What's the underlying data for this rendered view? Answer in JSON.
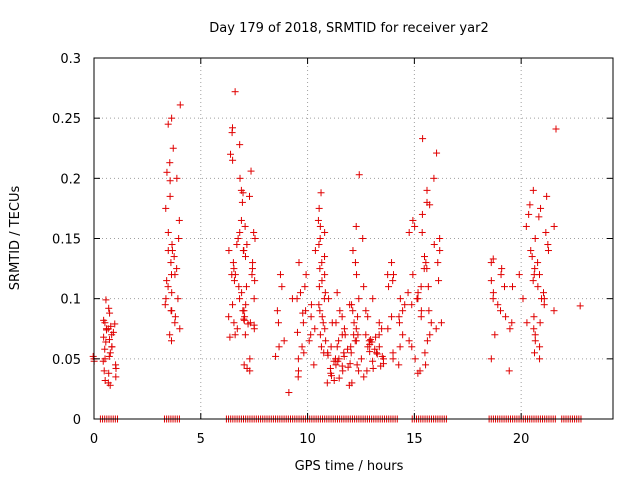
{
  "chart_data": {
    "type": "scatter",
    "title": "Day 179 of 2018, SRMTID for receiver yar2",
    "xlabel": "GPS time / hours",
    "ylabel": "SRMTID / TECUs",
    "xlim": [
      0,
      24.3
    ],
    "ylim": [
      0,
      0.3
    ],
    "xticks": [
      0,
      5,
      10,
      15,
      20
    ],
    "xtick_labels": [
      "0",
      "5",
      "10",
      "15",
      "20"
    ],
    "yticks": [
      0,
      0.05,
      0.1,
      0.15,
      0.2,
      0.25,
      0.3
    ],
    "ytick_labels": [
      "0",
      "0.05",
      "0.1",
      "0.15",
      "0.2",
      "0.25",
      "0.3"
    ],
    "grid": true,
    "marker": "+",
    "color": "#e00000",
    "clusters": [
      {
        "range": [
          -0.05,
          0.05
        ],
        "values": [
          0.05,
          0.048,
          0.052
        ]
      },
      {
        "range": [
          0.4,
          1.05
        ],
        "values": [
          0.099,
          0.092,
          0.088,
          0.082,
          0.079,
          0.077,
          0.075,
          0.074,
          0.072,
          0.07,
          0.068,
          0.066,
          0.064,
          0.06,
          0.058,
          0.055,
          0.052,
          0.05,
          0.048,
          0.045,
          0.042,
          0.04,
          0.038,
          0.035,
          0.032,
          0.03,
          0.028,
          0.06,
          0.075,
          0.08
        ]
      },
      {
        "range": [
          3.3,
          4.05
        ],
        "values": [
          0.261,
          0.25,
          0.245,
          0.225,
          0.213,
          0.205,
          0.2,
          0.198,
          0.185,
          0.175,
          0.165,
          0.155,
          0.15,
          0.145,
          0.14,
          0.135,
          0.13,
          0.125,
          0.12,
          0.115,
          0.11,
          0.105,
          0.1,
          0.095,
          0.09,
          0.085,
          0.08,
          0.075,
          0.07,
          0.065,
          0.14,
          0.12,
          0.1,
          0.09
        ]
      },
      {
        "range": [
          6.3,
          7.0
        ],
        "values": [
          0.272,
          0.242,
          0.238,
          0.228,
          0.22,
          0.215,
          0.2,
          0.19,
          0.188,
          0.18,
          0.165,
          0.155,
          0.15,
          0.145,
          0.14,
          0.13,
          0.125,
          0.12,
          0.115,
          0.11,
          0.1,
          0.095,
          0.09,
          0.085,
          0.08,
          0.075,
          0.07,
          0.068,
          0.14,
          0.12,
          0.105
        ]
      },
      {
        "range": [
          7.0,
          7.6
        ],
        "values": [
          0.206,
          0.185,
          0.16,
          0.155,
          0.15,
          0.145,
          0.14,
          0.135,
          0.13,
          0.125,
          0.12,
          0.115,
          0.11,
          0.1,
          0.095,
          0.09,
          0.085,
          0.083,
          0.08,
          0.078,
          0.075,
          0.07,
          0.05,
          0.045,
          0.042,
          0.04,
          0.082,
          0.079
        ]
      },
      {
        "range": [
          8.5,
          9.5
        ],
        "values": [
          0.12,
          0.11,
          0.1,
          0.08,
          0.06,
          0.052,
          0.022,
          0.09,
          0.065
        ]
      },
      {
        "range": [
          9.5,
          10.4
        ],
        "values": [
          0.13,
          0.12,
          0.11,
          0.1,
          0.095,
          0.09,
          0.085,
          0.08,
          0.075,
          0.07,
          0.065,
          0.06,
          0.055,
          0.05,
          0.045,
          0.04,
          0.035,
          0.105,
          0.088,
          0.072
        ]
      },
      {
        "range": [
          10.3,
          10.85
        ],
        "values": [
          0.188,
          0.175,
          0.165,
          0.16,
          0.155,
          0.15,
          0.145,
          0.14,
          0.135,
          0.13,
          0.125,
          0.12,
          0.115,
          0.11,
          0.105,
          0.1,
          0.095,
          0.09,
          0.085,
          0.08,
          0.075,
          0.07,
          0.065,
          0.06,
          0.055
        ]
      },
      {
        "range": [
          10.9,
          12.0
        ],
        "values": [
          0.105,
          0.1,
          0.095,
          0.09,
          0.085,
          0.08,
          0.075,
          0.07,
          0.065,
          0.06,
          0.058,
          0.055,
          0.053,
          0.05,
          0.048,
          0.046,
          0.044,
          0.042,
          0.04,
          0.038,
          0.036,
          0.034,
          0.032,
          0.03,
          0.028,
          0.05,
          0.055,
          0.045,
          0.06,
          0.07,
          0.08,
          0.052,
          0.048,
          0.043
        ]
      },
      {
        "range": [
          12.0,
          12.7
        ],
        "values": [
          0.203,
          0.16,
          0.15,
          0.14,
          0.13,
          0.12,
          0.11,
          0.1,
          0.095,
          0.09,
          0.085,
          0.08,
          0.075,
          0.07,
          0.065,
          0.06,
          0.055,
          0.05,
          0.045,
          0.04,
          0.035,
          0.03,
          0.065,
          0.07
        ]
      },
      {
        "range": [
          12.7,
          13.6
        ],
        "values": [
          0.1,
          0.09,
          0.085,
          0.08,
          0.075,
          0.07,
          0.068,
          0.066,
          0.064,
          0.062,
          0.06,
          0.058,
          0.056,
          0.054,
          0.052,
          0.05,
          0.048,
          0.046,
          0.044,
          0.042,
          0.04,
          0.065,
          0.06,
          0.07,
          0.055
        ]
      },
      {
        "range": [
          13.6,
          14.8
        ],
        "values": [
          0.155,
          0.13,
          0.12,
          0.115,
          0.11,
          0.105,
          0.1,
          0.095,
          0.09,
          0.085,
          0.08,
          0.075,
          0.07,
          0.065,
          0.06,
          0.055,
          0.05,
          0.045,
          0.085,
          0.12
        ]
      },
      {
        "range": [
          14.8,
          16.3
        ],
        "values": [
          0.233,
          0.221,
          0.2,
          0.19,
          0.18,
          0.178,
          0.17,
          0.165,
          0.16,
          0.155,
          0.15,
          0.145,
          0.14,
          0.135,
          0.13,
          0.125,
          0.12,
          0.115,
          0.11,
          0.105,
          0.1,
          0.095,
          0.09,
          0.085,
          0.08,
          0.075,
          0.07,
          0.065,
          0.06,
          0.055,
          0.05,
          0.045,
          0.04,
          0.038,
          0.125,
          0.11,
          0.1,
          0.09,
          0.08,
          0.13
        ]
      },
      {
        "range": [
          18.6,
          19.6
        ],
        "values": [
          0.133,
          0.13,
          0.125,
          0.12,
          0.115,
          0.11,
          0.105,
          0.1,
          0.095,
          0.09,
          0.085,
          0.08,
          0.075,
          0.07,
          0.05,
          0.04,
          0.11
        ]
      },
      {
        "range": [
          19.9,
          20.5
        ],
        "values": [
          0.178,
          0.17,
          0.16,
          0.14,
          0.12,
          0.1,
          0.08
        ]
      },
      {
        "range": [
          20.5,
          21.6
        ],
        "values": [
          0.19,
          0.185,
          0.175,
          0.168,
          0.16,
          0.155,
          0.15,
          0.145,
          0.14,
          0.135,
          0.13,
          0.125,
          0.12,
          0.115,
          0.11,
          0.105,
          0.1,
          0.095,
          0.09,
          0.085,
          0.08,
          0.075,
          0.07,
          0.065,
          0.06,
          0.055,
          0.05,
          0.12,
          0.1
        ]
      },
      {
        "range": [
          21.6,
          21.7
        ],
        "values": [
          0.241
        ]
      },
      {
        "range": [
          22.6,
          22.8
        ],
        "values": [
          0.094
        ]
      }
    ],
    "zero_segments": [
      [
        0.3,
        1.1
      ],
      [
        3.3,
        4.0
      ],
      [
        6.2,
        14.2
      ],
      [
        14.9,
        16.5
      ],
      [
        18.5,
        21.6
      ],
      [
        21.9,
        22.8
      ]
    ]
  }
}
